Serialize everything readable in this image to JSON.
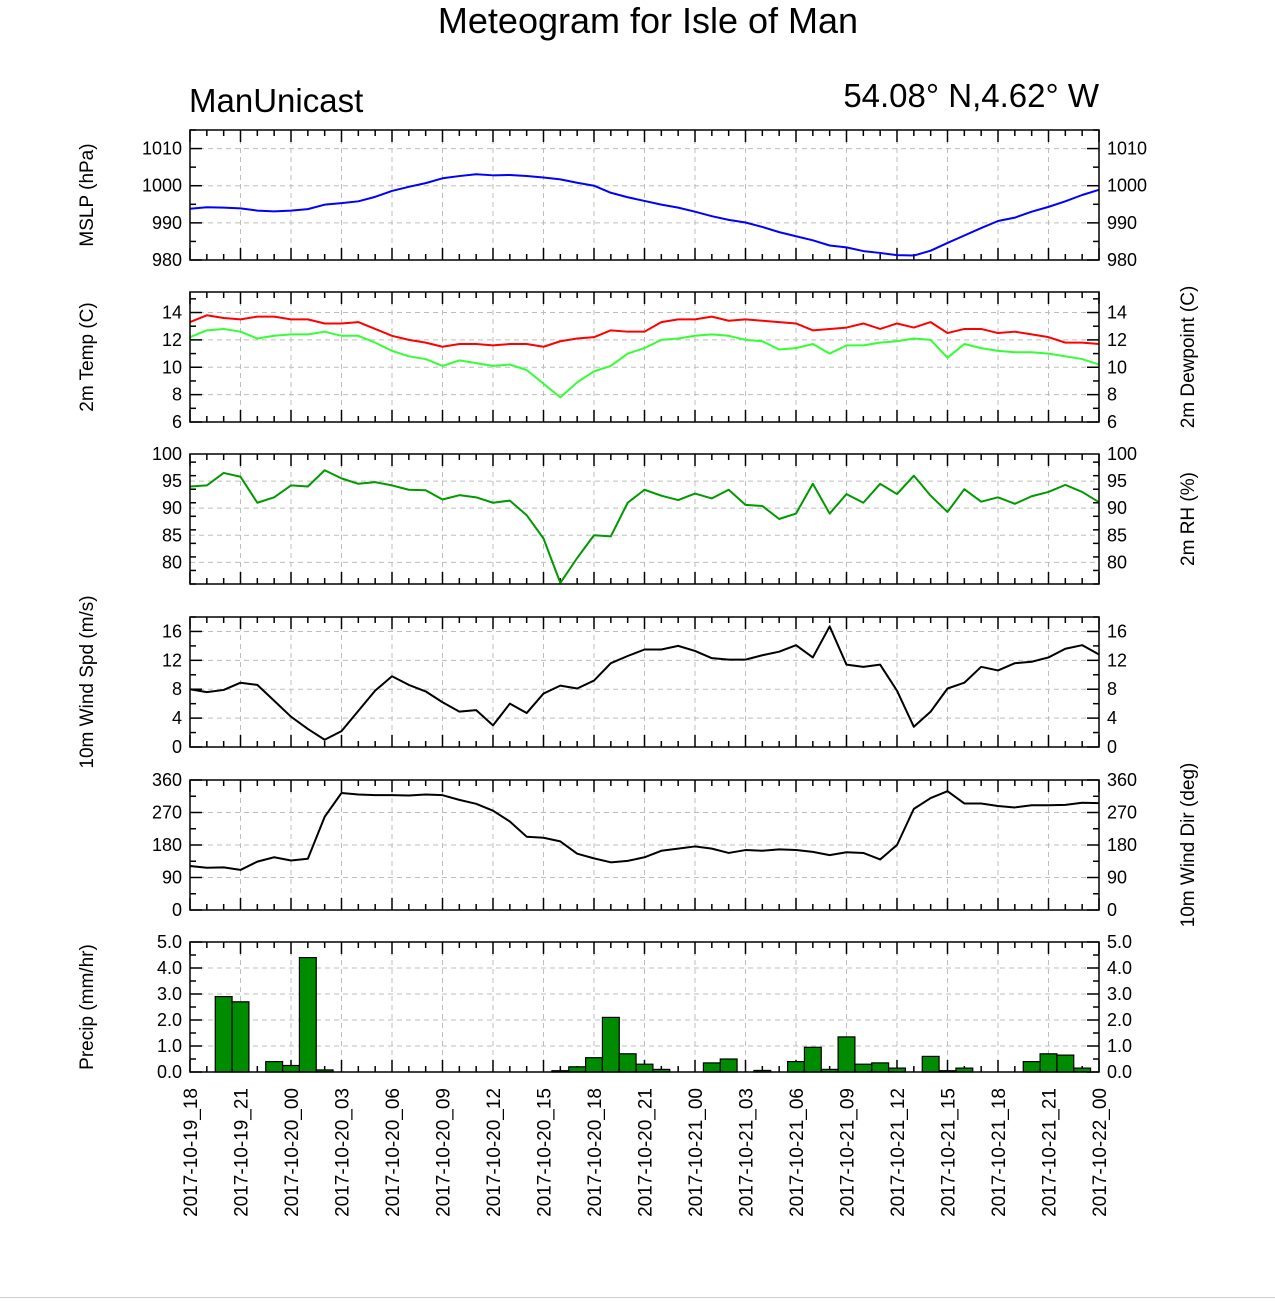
{
  "chart_data": {
    "type": "line",
    "title": "Meteogram for Isle of Man",
    "left_label": "ManUnicast",
    "right_label": "54.08° N,4.62° W",
    "x_start": "2017-10-19 18:00",
    "x_step_hours": 1,
    "x_tick_labels": [
      "2017-10-19_18",
      "2017-10-19_21",
      "2017-10-20_00",
      "2017-10-20_03",
      "2017-10-20_06",
      "2017-10-20_09",
      "2017-10-20_12",
      "2017-10-20_15",
      "2017-10-20_18",
      "2017-10-20_21",
      "2017-10-21_00",
      "2017-10-21_03",
      "2017-10-21_06",
      "2017-10-21_09",
      "2017-10-21_12",
      "2017-10-21_15",
      "2017-10-21_18",
      "2017-10-21_21",
      "2017-10-22_00"
    ],
    "panels": [
      {
        "id": "mslp",
        "ylabel": "MSLP (hPa)",
        "ylabel_right": "",
        "ylim": [
          980,
          1015
        ],
        "yticks": [
          980,
          990,
          1000,
          1010
        ],
        "ytick_labels": [
          "980",
          "990",
          "1000",
          "1010"
        ],
        "series": [
          {
            "color": "#0000ff",
            "values": [
              993.8,
              994.2,
              994.1,
              993.9,
              993.3,
              993.1,
              993.3,
              993.7,
              994.9,
              995.3,
              995.8,
              997,
              998.6,
              999.7,
              1000.7,
              1002,
              1002.6,
              1003.1,
              1002.8,
              1002.9,
              1002.6,
              1002.2,
              1001.7,
              1000.8,
              1000,
              998.1,
              996.9,
              995.9,
              994.9,
              994.1,
              993,
              991.8,
              990.8,
              990.1,
              988.9,
              987.5,
              986.4,
              985.3,
              983.9,
              983.4,
              982.4,
              981.9,
              981.3,
              981.2,
              982.5,
              984.6,
              986.6,
              988.6,
              990.5,
              991.4,
              993,
              994.3,
              995.8,
              997.5,
              998.9
            ]
          }
        ]
      },
      {
        "id": "temp",
        "ylabel": "2m Temp (C)",
        "ylabel_right": "2m Dewpoint (C)",
        "ylim": [
          6,
          15.5
        ],
        "yticks": [
          6,
          8,
          10,
          12,
          14
        ],
        "ytick_labels": [
          "6",
          "8",
          "10",
          "12",
          "14"
        ],
        "series": [
          {
            "color": "#ff0000",
            "values": [
              13.3,
              13.8,
              13.6,
              13.5,
              13.7,
              13.7,
              13.5,
              13.5,
              13.2,
              13.2,
              13.3,
              12.8,
              12.3,
              12,
              11.8,
              11.5,
              11.7,
              11.7,
              11.6,
              11.7,
              11.7,
              11.5,
              11.9,
              12.1,
              12.2,
              12.7,
              12.6,
              12.6,
              13.3,
              13.5,
              13.5,
              13.7,
              13.4,
              13.5,
              13.4,
              13.3,
              13.2,
              12.7,
              12.8,
              12.9,
              13.2,
              12.8,
              13.2,
              12.9,
              13.3,
              12.5,
              12.8,
              12.8,
              12.5,
              12.6,
              12.4,
              12.2,
              11.8,
              11.8,
              11.7
            ]
          },
          {
            "color": "#33ff33",
            "values": [
              12.2,
              12.7,
              12.8,
              12.6,
              12.1,
              12.3,
              12.4,
              12.4,
              12.6,
              12.3,
              12.3,
              11.8,
              11.2,
              10.8,
              10.6,
              10.1,
              10.5,
              10.3,
              10.1,
              10.2,
              9.8,
              8.8,
              7.8,
              8.9,
              9.7,
              10.1,
              11,
              11.4,
              12,
              12.1,
              12.3,
              12.4,
              12.3,
              12,
              11.9,
              11.3,
              11.4,
              11.7,
              11,
              11.6,
              11.6,
              11.8,
              11.9,
              12.1,
              12,
              10.7,
              11.7,
              11.4,
              11.2,
              11.1,
              11.1,
              11,
              10.8,
              10.6,
              10.2
            ]
          }
        ]
      },
      {
        "id": "rh",
        "ylabel": "",
        "ylabel_right": "2m RH (%)",
        "ylim": [
          76,
          100
        ],
        "yticks": [
          80,
          85,
          90,
          95,
          100
        ],
        "ytick_labels": [
          "80",
          "85",
          "90",
          "95",
          "100"
        ],
        "series": [
          {
            "color": "#009900",
            "values": [
              94,
              94.2,
              96.5,
              95.8,
              91,
              92,
              94.2,
              94,
              97,
              95.5,
              94.5,
              94.8,
              94.2,
              93.4,
              93.3,
              91.6,
              92.4,
              92,
              91,
              91.4,
              88.7,
              84.4,
              76.2,
              80.8,
              85,
              84.8,
              91,
              93.4,
              92.3,
              91.5,
              92.7,
              91.8,
              93.4,
              90.6,
              90.4,
              88,
              89,
              94.5,
              89,
              92.6,
              91,
              94.5,
              92.6,
              96,
              92.3,
              89.3,
              93.5,
              91.2,
              92,
              90.8,
              92.2,
              93,
              94.3,
              93,
              91.1
            ]
          }
        ]
      },
      {
        "id": "wspd",
        "ylabel": "10m Wind Spd (m/s)",
        "ylabel_right": "",
        "ylim": [
          0,
          18
        ],
        "yticks": [
          0,
          4,
          8,
          12,
          16
        ],
        "ytick_labels": [
          "0",
          "4",
          "8",
          "12",
          "16"
        ],
        "series": [
          {
            "color": "#000000",
            "values": [
              8,
              7.6,
              7.9,
              8.9,
              8.6,
              6.4,
              4.2,
              2.5,
              1,
              2.2,
              5,
              7.8,
              9.8,
              8.6,
              7.7,
              6.2,
              4.9,
              5.1,
              3,
              6,
              4.7,
              7.4,
              8.5,
              8.1,
              9.2,
              11.6,
              12.6,
              13.5,
              13.5,
              14,
              13.3,
              12.3,
              12.1,
              12.1,
              12.7,
              13.2,
              14.1,
              12.4,
              16.7,
              11.4,
              11.1,
              11.4,
              7.8,
              2.8,
              4.9,
              8.1,
              8.9,
              11.1,
              10.6,
              11.6,
              11.8,
              12.4,
              13.6,
              14.1,
              12.8
            ]
          }
        ]
      },
      {
        "id": "wdir",
        "ylabel": "",
        "ylabel_right": "10m Wind Dir (deg)",
        "ylim": [
          0,
          360
        ],
        "yticks": [
          0,
          90,
          180,
          270,
          360
        ],
        "ytick_labels": [
          "0",
          "90",
          "180",
          "270",
          "360"
        ],
        "series": [
          {
            "color": "#000000",
            "values": [
              122,
              117,
              118,
              111,
              134,
              146,
              137,
              142,
              258,
              324,
              320,
              318,
              318,
              317,
              320,
              318,
              305,
              294,
              275,
              245,
              203,
              200,
              190,
              156,
              143,
              132,
              136,
              146,
              164,
              170,
              176,
              170,
              158,
              166,
              164,
              168,
              166,
              161,
              152,
              160,
              158,
              140,
              180,
              280,
              310,
              329,
              295,
              295,
              288,
              284,
              290,
              290,
              291,
              297,
              296
            ]
          }
        ]
      },
      {
        "id": "precip",
        "type": "bar",
        "ylabel": "Precip (mm/hr)",
        "ylabel_right": "",
        "ylim": [
          0,
          5.0
        ],
        "yticks": [
          0,
          1,
          2,
          3,
          4,
          5
        ],
        "ytick_labels": [
          "0.0",
          "1.0",
          "2.0",
          "3.0",
          "4.0",
          "5.0"
        ],
        "bar_color": "#008c00",
        "values": [
          0,
          2.9,
          2.7,
          0,
          0.4,
          0.25,
          4.4,
          0.08,
          0,
          0,
          0,
          0,
          0,
          0,
          0,
          0,
          0,
          0,
          0,
          0,
          0,
          0.05,
          0.2,
          0.55,
          2.1,
          0.7,
          0.3,
          0.1,
          0,
          0,
          0.35,
          0.5,
          0,
          0.06,
          0,
          0.4,
          0.95,
          0.1,
          1.35,
          0.3,
          0.35,
          0.15,
          0,
          0.6,
          0.05,
          0.15,
          0,
          0,
          0,
          0.4,
          0.7,
          0.65,
          0.15,
          0
        ]
      }
    ]
  }
}
